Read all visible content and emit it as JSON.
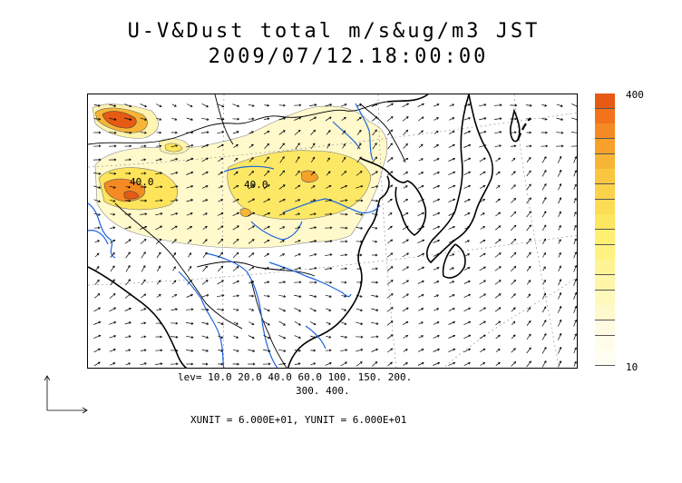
{
  "title": {
    "line1": "U-V&Dust total m/s&ug/m3 JST",
    "line2": "2009/07/12.18:00:00"
  },
  "contour_labels": [
    "40.0",
    "40.0"
  ],
  "colorbar": {
    "max_label": "400",
    "min_label": "10",
    "colors": [
      "#e65a14",
      "#f2731a",
      "#f58a22",
      "#f7a02a",
      "#f8b535",
      "#fac640",
      "#fbd24c",
      "#fcdc55",
      "#fde660",
      "#fef070",
      "#fff280",
      "#fff495",
      "#fff6a8",
      "#fff8bc",
      "#fffacd",
      "#fffbe0",
      "#fffde9",
      "#fffef3"
    ]
  },
  "levels": {
    "line1": "lev= 10.0 20.0 40.0 60.0 100. 150. 200.",
    "line2": "300. 400."
  },
  "units": "XUNIT = 6.000E+01, YUNIT = 6.000E+01",
  "style": {
    "river_color": "#1e64dc",
    "coast_color": "#000000"
  }
}
